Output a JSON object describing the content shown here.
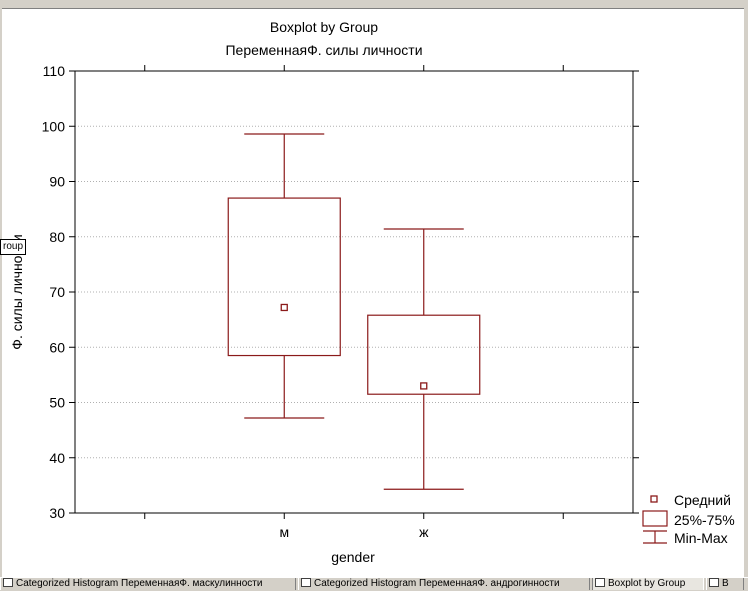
{
  "side_tag": "roup",
  "taskbar": {
    "tabs": [
      {
        "label": "Categorized Histogram ПеременнаяФ. маскулинности"
      },
      {
        "label": "Categorized Histogram ПеременнаяФ. андрогинности"
      },
      {
        "label": "Boxplot by Group"
      },
      {
        "label": "B"
      }
    ]
  },
  "colors": {
    "plot_line": "#8b1a1a",
    "grid": "#b0b0b0",
    "axis": "#000000"
  },
  "chart_data": {
    "type": "boxplot",
    "title": "Boxplot by Group",
    "subtitle": "ПеременнаяФ. силы личности",
    "xlabel": "gender",
    "ylabel": "Ф. силы личности",
    "ylim": [
      30,
      110
    ],
    "yticks": [
      30,
      40,
      50,
      60,
      70,
      80,
      90,
      100,
      110
    ],
    "grid": true,
    "categories": [
      "м",
      "ж"
    ],
    "groups": [
      {
        "category": "м",
        "mean": 67.2,
        "q1": 58.5,
        "q3": 87.0,
        "min": 47.2,
        "max": 98.6
      },
      {
        "category": "ж",
        "mean": 53.0,
        "q1": 51.5,
        "q3": 65.8,
        "min": 34.3,
        "max": 81.4
      }
    ],
    "legend": {
      "position": "bottom-right",
      "items": [
        {
          "label": "Средний",
          "marker": "square"
        },
        {
          "label": "25%-75%",
          "marker": "box"
        },
        {
          "label": "Min-Max",
          "marker": "whisker"
        }
      ]
    }
  }
}
